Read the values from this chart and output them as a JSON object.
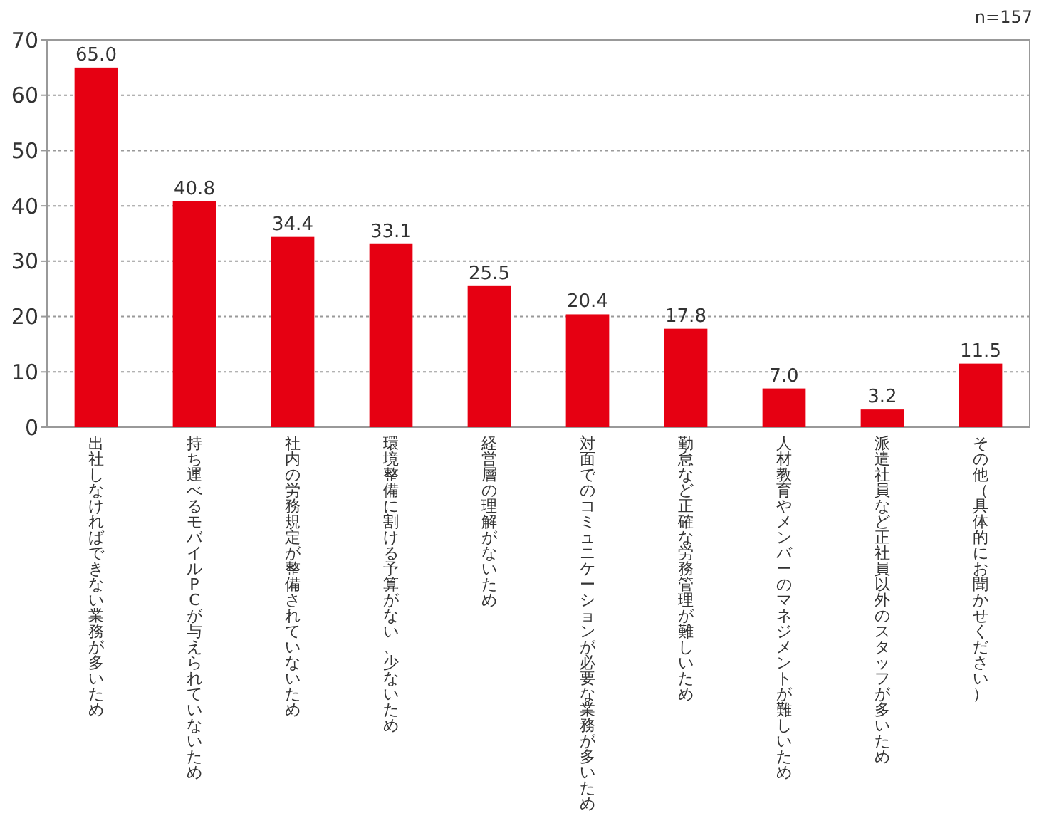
{
  "chart_data": {
    "type": "bar",
    "categories": [
      "出社しなければできない業務が多いため",
      "持ち運べるモバイルPCが与えられていないため",
      "社内の労務規定が整備されていないため",
      "環境整備に割ける予算がない、少ないため",
      "経営層の理解がないため",
      "対面でのコミュニケーションが必要な業務が多いため",
      "勤怠など正確な労務管理が難しいため",
      "人材教育やメンバーのマネジメントが難しいため",
      "派遣社員など正社員以外のスタッフが多いため",
      "その他（具体的にお聞かせください）"
    ],
    "values": [
      65.0,
      40.8,
      34.4,
      33.1,
      25.5,
      20.4,
      17.8,
      7.0,
      3.2,
      11.5
    ],
    "value_labels": [
      "65.0",
      "40.8",
      "34.4",
      "33.1",
      "25.5",
      "20.4",
      "17.8",
      "7.0",
      "3.2",
      "11.5"
    ],
    "color": "#e60012",
    "ylim": [
      0,
      70
    ],
    "yticks": [
      0,
      10,
      20,
      30,
      40,
      50,
      60,
      70
    ],
    "grid": "y",
    "annotations": [
      "n=157"
    ]
  }
}
